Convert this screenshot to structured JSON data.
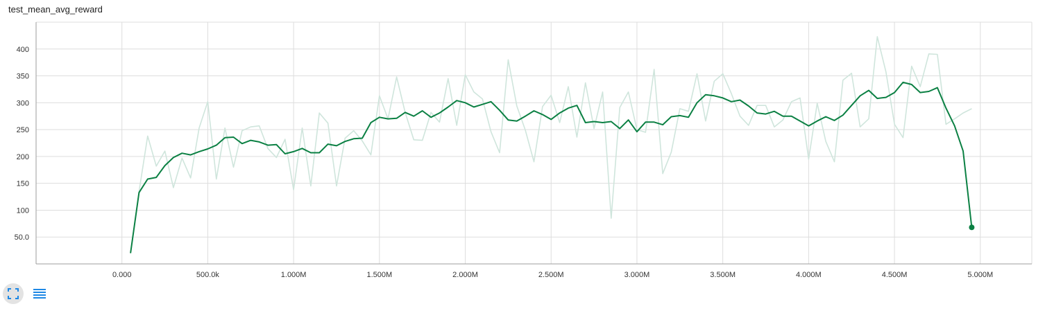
{
  "chart_data": {
    "type": "line",
    "title": "test_mean_avg_reward",
    "xlabel": "",
    "ylabel": "",
    "xlim": [
      -500000,
      5300000
    ],
    "ylim": [
      0,
      450
    ],
    "grid": true,
    "x_ticks": [
      {
        "value": 0,
        "label": "0.000"
      },
      {
        "value": 500000,
        "label": "500.0k"
      },
      {
        "value": 1000000,
        "label": "1.000M"
      },
      {
        "value": 1500000,
        "label": "1.500M"
      },
      {
        "value": 2000000,
        "label": "2.000M"
      },
      {
        "value": 2500000,
        "label": "2.500M"
      },
      {
        "value": 3000000,
        "label": "3.000M"
      },
      {
        "value": 3500000,
        "label": "3.500M"
      },
      {
        "value": 4000000,
        "label": "4.000M"
      },
      {
        "value": 4500000,
        "label": "4.500M"
      },
      {
        "value": 5000000,
        "label": "5.000M"
      }
    ],
    "y_ticks": [
      {
        "value": 50,
        "label": "50.0"
      },
      {
        "value": 100,
        "label": "100"
      },
      {
        "value": 150,
        "label": "150"
      },
      {
        "value": 200,
        "label": "200"
      },
      {
        "value": 250,
        "label": "250"
      },
      {
        "value": 300,
        "label": "300"
      },
      {
        "value": 350,
        "label": "350"
      },
      {
        "value": 400,
        "label": "400"
      }
    ],
    "x": [
      50000,
      100000,
      150000,
      200000,
      250000,
      300000,
      350000,
      400000,
      450000,
      500000,
      550000,
      600000,
      650000,
      700000,
      750000,
      800000,
      850000,
      900000,
      950000,
      1000000,
      1050000,
      1100000,
      1150000,
      1200000,
      1250000,
      1300000,
      1350000,
      1400000,
      1450000,
      1500000,
      1550000,
      1600000,
      1650000,
      1700000,
      1750000,
      1800000,
      1850000,
      1900000,
      1950000,
      2000000,
      2050000,
      2100000,
      2150000,
      2200000,
      2250000,
      2300000,
      2350000,
      2400000,
      2450000,
      2500000,
      2550000,
      2600000,
      2650000,
      2700000,
      2750000,
      2800000,
      2850000,
      2900000,
      2950000,
      3000000,
      3050000,
      3100000,
      3150000,
      3200000,
      3250000,
      3300000,
      3350000,
      3400000,
      3450000,
      3500000,
      3550000,
      3600000,
      3650000,
      3700000,
      3750000,
      3800000,
      3850000,
      3900000,
      3950000,
      4000000,
      4050000,
      4100000,
      4150000,
      4200000,
      4250000,
      4300000,
      4350000,
      4400000,
      4450000,
      4500000,
      4550000,
      4600000,
      4650000,
      4700000,
      4750000,
      4800000,
      4850000,
      4900000,
      4950000
    ],
    "series": [
      {
        "role": "raw",
        "color": "#cfe5dc",
        "values": [
          20,
          135,
          238,
          182,
          210,
          142,
          197,
          160,
          253,
          302,
          158,
          253,
          180,
          248,
          255,
          257,
          215,
          198,
          232,
          138,
          253,
          145,
          281,
          262,
          145,
          234,
          248,
          229,
          203,
          313,
          270,
          348,
          282,
          231,
          230,
          282,
          264,
          345,
          258,
          352,
          320,
          307,
          246,
          207,
          380,
          294,
          249,
          190,
          293,
          314,
          263,
          330,
          236,
          337,
          252,
          320,
          85,
          291,
          320,
          250,
          245,
          362,
          168,
          208,
          289,
          284,
          354,
          266,
          340,
          354,
          317,
          275,
          258,
          295,
          295,
          255,
          268,
          302,
          309,
          195,
          299,
          228,
          190,
          342,
          355,
          255,
          270,
          423,
          358,
          260,
          235,
          368,
          330,
          391,
          390,
          260,
          270,
          281,
          289
        ]
      },
      {
        "role": "smoothed",
        "color": "#0b8043",
        "values": [
          20,
          133,
          158,
          161,
          183,
          198,
          206,
          203,
          209,
          214,
          221,
          235,
          236,
          224,
          230,
          227,
          221,
          222,
          205,
          209,
          215,
          207,
          207,
          223,
          220,
          228,
          233,
          234,
          263,
          273,
          270,
          271,
          282,
          275,
          285,
          273,
          281,
          292,
          304,
          300,
          292,
          297,
          302,
          286,
          268,
          266,
          275,
          285,
          278,
          269,
          281,
          290,
          295,
          263,
          265,
          263,
          265,
          252,
          268,
          246,
          264,
          264,
          259,
          274,
          276,
          273,
          300,
          315,
          313,
          309,
          302,
          305,
          294,
          281,
          279,
          284,
          275,
          275,
          266,
          257,
          266,
          274,
          267,
          277,
          295,
          313,
          323,
          308,
          310,
          319,
          338,
          334,
          319,
          321,
          328,
          290,
          257,
          210,
          68
        ]
      }
    ]
  },
  "toolbar": {
    "fit_icon": "fit-domain-icon",
    "data_icon": "data-table-icon"
  }
}
